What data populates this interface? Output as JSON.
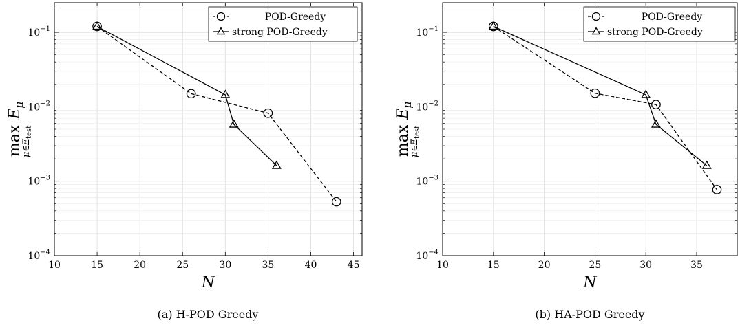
{
  "chart_data": [
    {
      "type": "line",
      "caption": "(a) H-POD Greedy",
      "xlabel": "N",
      "ylabel": "max E_μ (μ∈Ξ_test)",
      "ylabel_parts": {
        "main": "max",
        "var": "E",
        "var_sub": "μ",
        "under": "μ∈Ξ",
        "under_sub": "test"
      },
      "xlim": [
        10,
        46
      ],
      "ylim": [
        0.0001,
        0.25
      ],
      "yscale": "log",
      "grid": true,
      "legend_position": "top-right",
      "xticks": [
        10,
        15,
        20,
        25,
        30,
        35,
        40,
        45
      ],
      "yticks": [
        {
          "value": 0.0001,
          "base": "10",
          "exp": "−4"
        },
        {
          "value": 0.001,
          "base": "10",
          "exp": "−3"
        },
        {
          "value": 0.01,
          "base": "10",
          "exp": "−2"
        },
        {
          "value": 0.1,
          "base": "10",
          "exp": "−1"
        }
      ],
      "series": [
        {
          "name": "POD-Greedy",
          "style": "dashed",
          "marker": "circle",
          "x": [
            15,
            26,
            35,
            43
          ],
          "y": [
            0.12,
            0.015,
            0.0082,
            0.00053
          ]
        },
        {
          "name": "strong POD-Greedy",
          "style": "solid",
          "marker": "triangle",
          "x": [
            15,
            30,
            31,
            36
          ],
          "y": [
            0.12,
            0.0145,
            0.0058,
            0.00162
          ]
        }
      ]
    },
    {
      "type": "line",
      "caption": "(b) HA-POD Greedy",
      "xlabel": "N",
      "ylabel": "max E_μ (μ∈Ξ_test)",
      "ylabel_parts": {
        "main": "max",
        "var": "E",
        "var_sub": "μ",
        "under": "μ∈Ξ",
        "under_sub": "test"
      },
      "xlim": [
        10,
        39
      ],
      "ylim": [
        0.0001,
        0.25
      ],
      "yscale": "log",
      "grid": true,
      "legend_position": "top-right",
      "xticks": [
        10,
        15,
        20,
        25,
        30,
        35
      ],
      "yticks": [
        {
          "value": 0.0001,
          "base": "10",
          "exp": "−4"
        },
        {
          "value": 0.001,
          "base": "10",
          "exp": "−3"
        },
        {
          "value": 0.01,
          "base": "10",
          "exp": "−2"
        },
        {
          "value": 0.1,
          "base": "10",
          "exp": "−1"
        }
      ],
      "series": [
        {
          "name": "POD-Greedy",
          "style": "dashed",
          "marker": "circle",
          "x": [
            15,
            25,
            31,
            37
          ],
          "y": [
            0.12,
            0.0152,
            0.0107,
            0.00077
          ]
        },
        {
          "name": "strong POD-Greedy",
          "style": "solid",
          "marker": "triangle",
          "x": [
            15,
            30,
            31,
            36
          ],
          "y": [
            0.12,
            0.0145,
            0.0058,
            0.00162
          ]
        }
      ]
    }
  ]
}
